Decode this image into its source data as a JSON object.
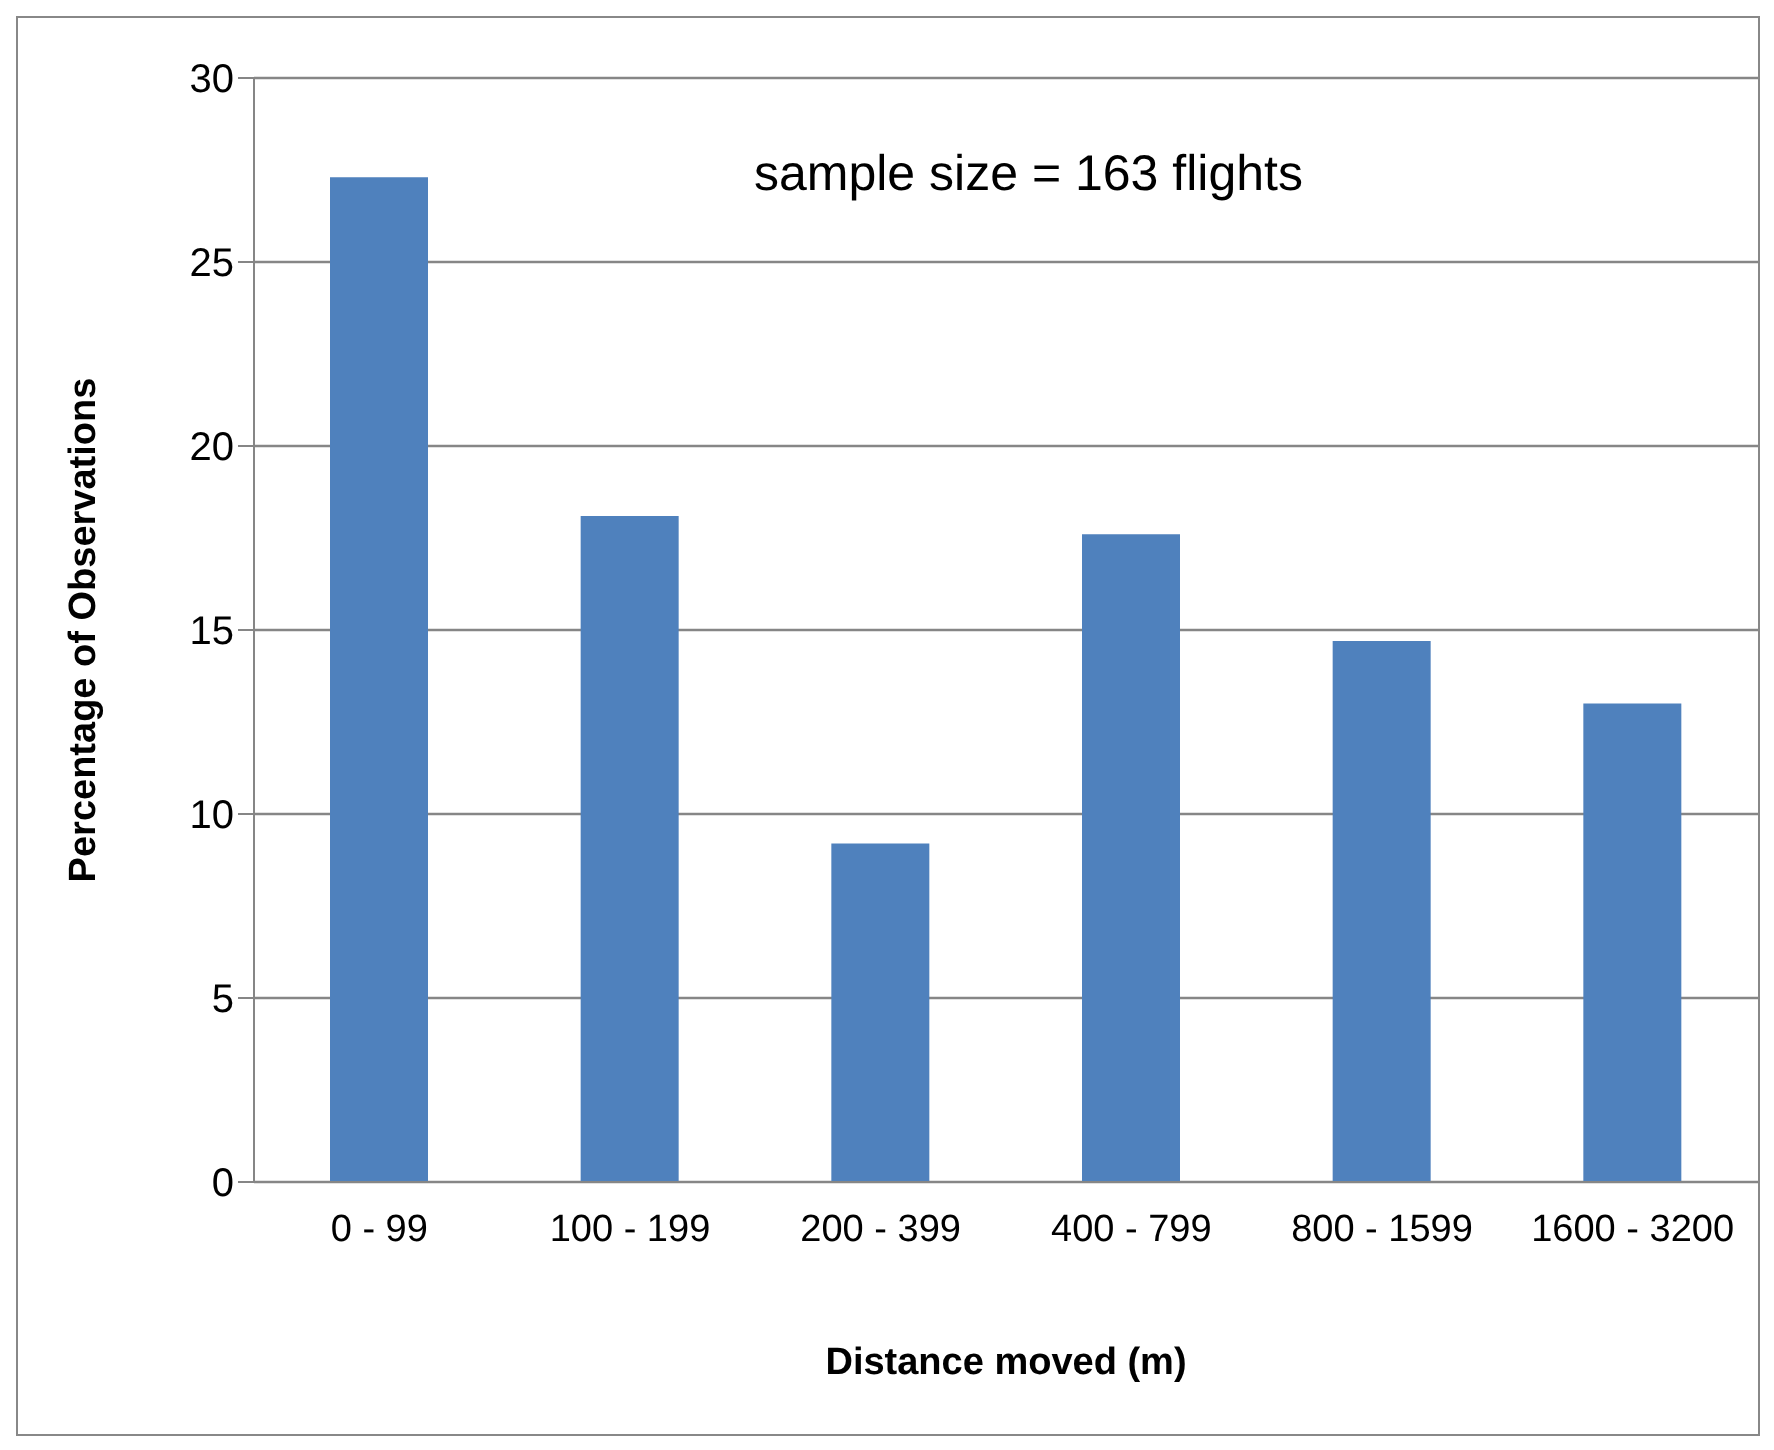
{
  "chart_data": {
    "type": "bar",
    "xlabel": "Distance moved (m)",
    "ylabel": "Percentage of Observations",
    "categories": [
      "0 - 99",
      "100 - 199",
      "200 - 399",
      "400 - 799",
      "800 - 1599",
      "1600 - 3200"
    ],
    "values": [
      27.3,
      18.1,
      9.2,
      17.6,
      14.7,
      13.0
    ],
    "color": "#4f81bd",
    "ylim": [
      0,
      30
    ],
    "yticks": [
      0,
      5,
      10,
      15,
      20,
      25,
      30
    ],
    "grid": "y",
    "annotations": [
      "sample size = 163 flights"
    ]
  }
}
